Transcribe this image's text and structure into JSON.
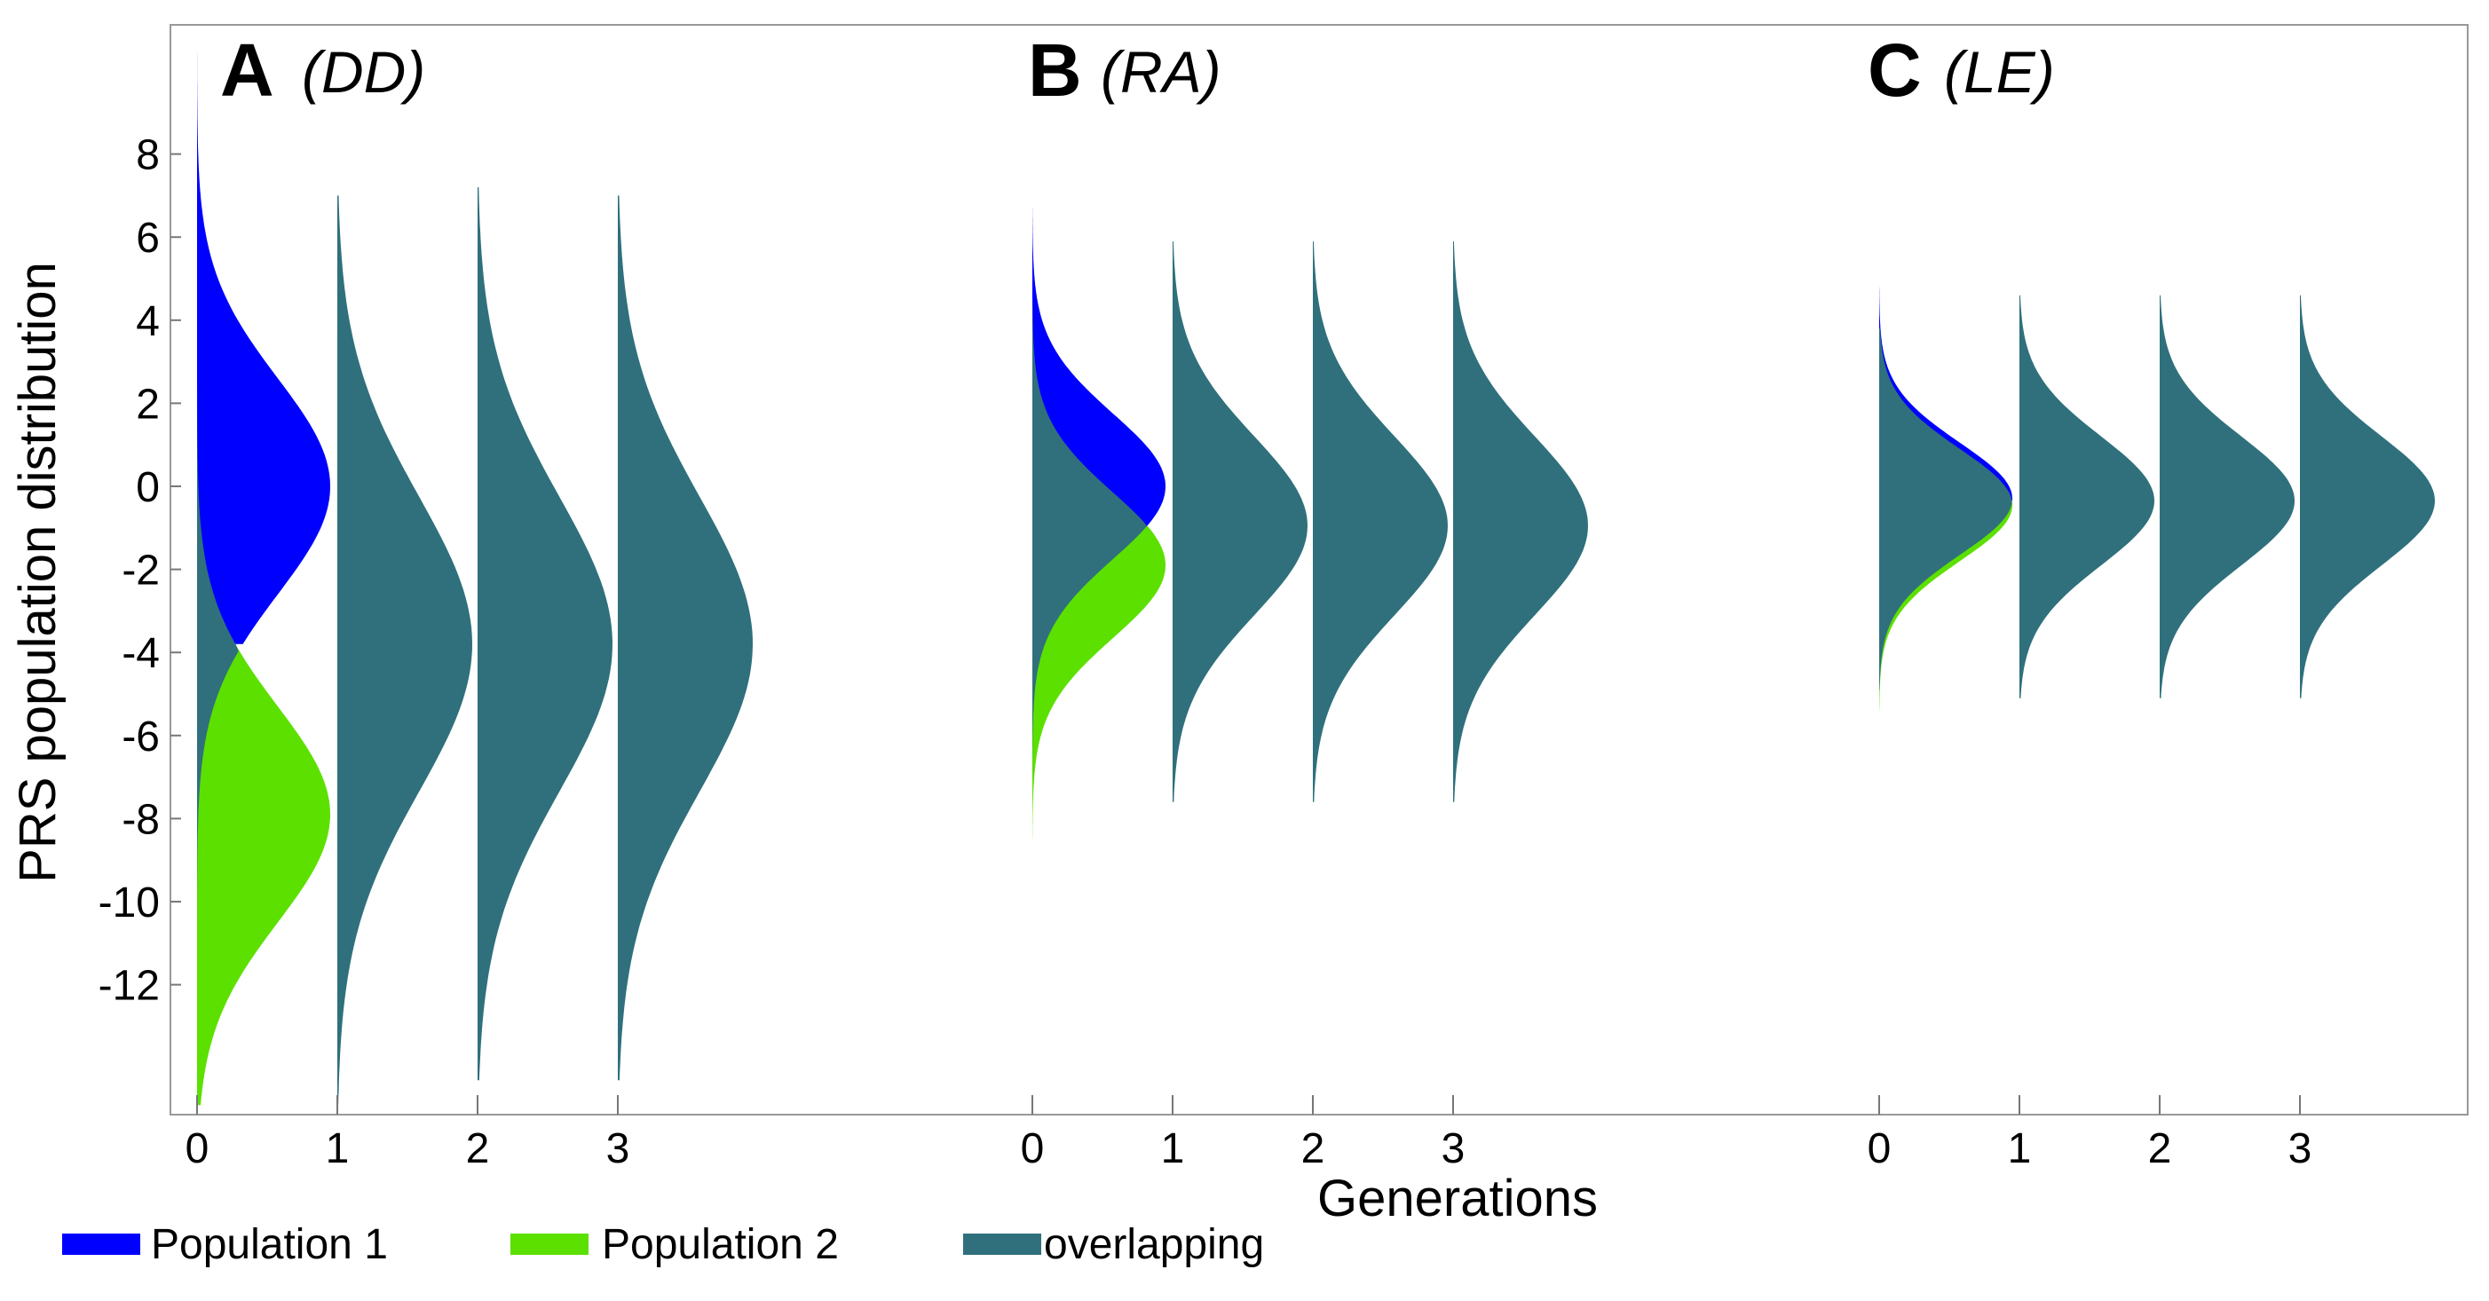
{
  "chart_data": {
    "type": "area",
    "title": "",
    "xlabel": "Generations",
    "ylabel": "PRS population distribution",
    "ylim": [
      -15,
      10.5
    ],
    "y_ticks": [
      8,
      6,
      4,
      2,
      0,
      -2,
      -4,
      -6,
      -8,
      -10,
      -12
    ],
    "x_tick_labels": [
      "0",
      "1",
      "2",
      "3"
    ],
    "legend": [
      {
        "name": "Population 1",
        "color": "#0000ff"
      },
      {
        "name": "Population 2",
        "color": "#5ce000"
      },
      {
        "name": "overlapping",
        "color": "#2f707c"
      }
    ],
    "panels": [
      {
        "letter": "A",
        "tag": "(DD)",
        "gen0": {
          "pop1": {
            "mean": 0,
            "sd": 2.6,
            "low": -3.8,
            "high": 10.6
          },
          "pop2": {
            "mean": -7.9,
            "sd": 2.6,
            "low": -14.9,
            "high": -3.8
          },
          "overlap_low": -12.3,
          "overlap_high": 2.4,
          "crossover": -3.8
        },
        "later_generations": [
          {
            "gen": 1,
            "mean": -3.8,
            "sd": 3.55,
            "low": -14.9,
            "high": 7.0
          },
          {
            "gen": 2,
            "mean": -3.8,
            "sd": 3.55,
            "low": -14.3,
            "high": 7.2
          },
          {
            "gen": 3,
            "mean": -3.8,
            "sd": 3.55,
            "low": -14.3,
            "high": 7.0
          }
        ]
      },
      {
        "letter": "B",
        "tag": "(RA)",
        "gen0": {
          "pop1": {
            "mean": 0,
            "sd": 1.75,
            "low": -0.95,
            "high": 6.7
          },
          "pop2": {
            "mean": -1.9,
            "sd": 1.75,
            "low": -8.5,
            "high": -0.95
          },
          "overlap_low": -7.0,
          "overlap_high": 4.5,
          "crossover": -0.95
        },
        "later_generations": [
          {
            "gen": 1,
            "mean": -0.95,
            "sd": 2.15,
            "low": -7.6,
            "high": 5.9
          },
          {
            "gen": 2,
            "mean": -0.95,
            "sd": 2.15,
            "low": -7.6,
            "high": 5.9
          },
          {
            "gen": 3,
            "mean": -0.95,
            "sd": 2.15,
            "low": -7.6,
            "high": 5.9
          }
        ]
      },
      {
        "letter": "C",
        "tag": "(LE)",
        "gen0": {
          "pop1": {
            "mean": -0.3,
            "sd": 1.35,
            "low": -0.35,
            "high": 4.8
          },
          "pop2": {
            "mean": -0.45,
            "sd": 1.35,
            "low": -5.4,
            "high": -0.35
          },
          "overlap_low": -4.9,
          "overlap_high": 3.8,
          "crossover": -0.35
        },
        "later_generations": [
          {
            "gen": 1,
            "mean": -0.35,
            "sd": 1.55,
            "low": -5.1,
            "high": 4.6
          },
          {
            "gen": 2,
            "mean": -0.35,
            "sd": 1.55,
            "low": -5.1,
            "high": 4.6
          },
          {
            "gen": 3,
            "mean": -0.35,
            "sd": 1.55,
            "low": -5.1,
            "high": 4.6
          }
        ]
      }
    ]
  }
}
